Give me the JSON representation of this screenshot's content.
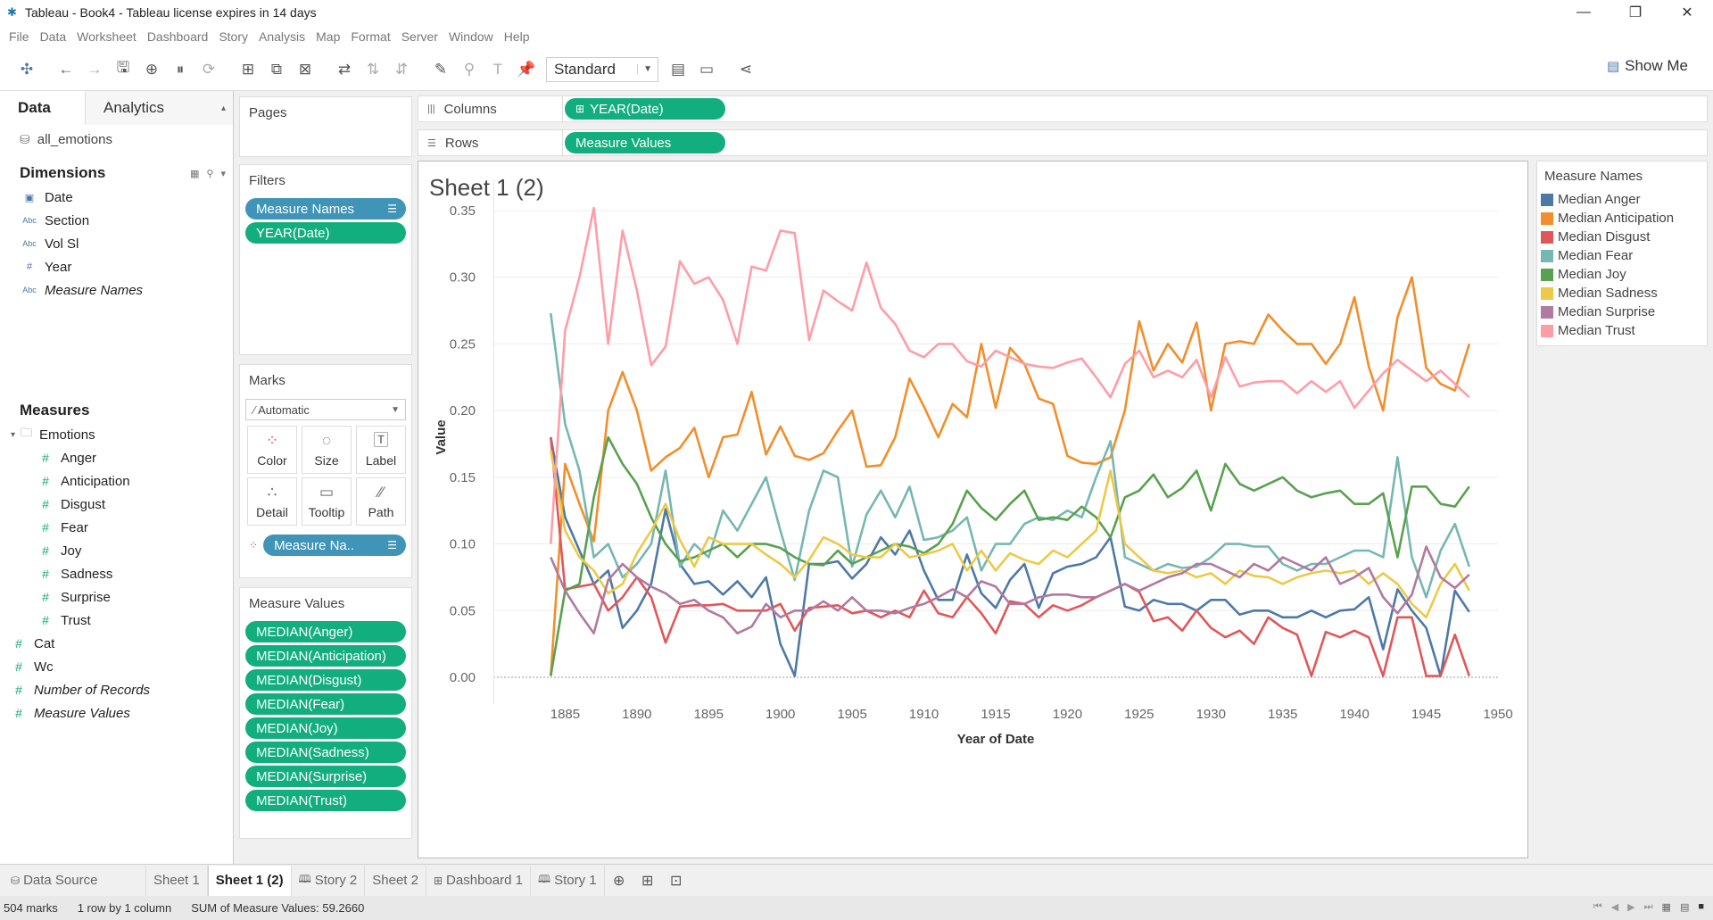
{
  "window": {
    "title": "Tableau - Book4 - Tableau license expires in 14 days",
    "minimize": "—",
    "restore": "❐",
    "close": "✕"
  },
  "menu": [
    "File",
    "Data",
    "Worksheet",
    "Dashboard",
    "Story",
    "Analysis",
    "Map",
    "Format",
    "Server",
    "Window",
    "Help"
  ],
  "toolbar": {
    "fit_value": "Standard",
    "show_me": "Show Me"
  },
  "data_pane": {
    "tab_data": "Data",
    "tab_analytics": "Analytics",
    "datasource": "all_emotions",
    "dimensions_title": "Dimensions",
    "dimensions": [
      {
        "type": "date",
        "name": "Date"
      },
      {
        "type": "abc",
        "name": "Section"
      },
      {
        "type": "abc",
        "name": "Vol Sl"
      },
      {
        "type": "num",
        "name": "Year"
      },
      {
        "type": "abc",
        "name": "Measure Names",
        "italic": true
      }
    ],
    "measures_title": "Measures",
    "folder": "Emotions",
    "folder_measures": [
      "Anger",
      "Anticipation",
      "Disgust",
      "Fear",
      "Joy",
      "Sadness",
      "Surprise",
      "Trust"
    ],
    "other_measures": [
      {
        "name": "Cat",
        "italic": false
      },
      {
        "name": "Wc",
        "italic": false
      },
      {
        "name": "Number of Records",
        "italic": true
      },
      {
        "name": "Measure Values",
        "italic": true
      }
    ]
  },
  "shelves": {
    "pages_title": "Pages",
    "filters_title": "Filters",
    "filters": [
      "Measure Names",
      "YEAR(Date)"
    ],
    "marks_title": "Marks",
    "marks_type": "Automatic",
    "marks_buttons": [
      "Color",
      "Size",
      "Label",
      "Detail",
      "Tooltip",
      "Path"
    ],
    "marks_pill": "Measure Na..",
    "measure_values_title": "Measure Values",
    "measure_values": [
      "MEDIAN(Anger)",
      "MEDIAN(Anticipation)",
      "MEDIAN(Disgust)",
      "MEDIAN(Fear)",
      "MEDIAN(Joy)",
      "MEDIAN(Sadness)",
      "MEDIAN(Surprise)",
      "MEDIAN(Trust)"
    ],
    "columns_label": "Columns",
    "columns_pill": "YEAR(Date)",
    "rows_label": "Rows",
    "rows_pill": "Measure Values"
  },
  "sheet": {
    "title": "Sheet 1 (2)"
  },
  "legend": {
    "title": "Measure Names"
  },
  "tabs": {
    "data_source": "Data Source",
    "sheets": [
      "Sheet 1",
      "Sheet 1 (2)",
      "Story 2",
      "Sheet 2",
      "Dashboard 1",
      "Story 1"
    ]
  },
  "status": {
    "marks": "504 marks",
    "rows_cols": "1 row by 1 column",
    "sum": "SUM of Measure Values: 59.2660"
  },
  "chart_data": {
    "type": "line",
    "xlabel": "Year of Date",
    "ylabel": "Value",
    "xlim": [
      1880,
      1950
    ],
    "ylim": [
      0,
      0.36
    ],
    "xticks": [
      1885,
      1890,
      1895,
      1900,
      1905,
      1910,
      1915,
      1920,
      1925,
      1930,
      1935,
      1940,
      1945,
      1950
    ],
    "yticks": [
      "0.00",
      "0.05",
      "0.10",
      "0.15",
      "0.20",
      "0.25",
      "0.30",
      "0.35"
    ],
    "x": [
      1884,
      1885,
      1886,
      1887,
      1888,
      1889,
      1890,
      1891,
      1892,
      1893,
      1894,
      1895,
      1896,
      1897,
      1898,
      1899,
      1900,
      1901,
      1902,
      1903,
      1904,
      1905,
      1906,
      1907,
      1908,
      1909,
      1910,
      1911,
      1912,
      1913,
      1914,
      1915,
      1916,
      1917,
      1918,
      1919,
      1920,
      1921,
      1922,
      1923,
      1924,
      1925,
      1926,
      1927,
      1928,
      1929,
      1930,
      1931,
      1932,
      1933,
      1934,
      1935,
      1936,
      1937,
      1938,
      1939,
      1940,
      1941,
      1942,
      1943,
      1944,
      1945,
      1946,
      1947,
      1948
    ],
    "series": [
      {
        "name": "Median Anger",
        "color": "#4e79a7",
        "values": [
          0.18,
          0.12,
          0.095,
          0.07,
          0.08,
          0.037,
          0.05,
          0.07,
          0.126,
          0.085,
          0.07,
          0.072,
          0.062,
          0.072,
          0.06,
          0.075,
          0.025,
          0.001,
          0.085,
          0.085,
          0.087,
          0.074,
          0.085,
          0.105,
          0.092,
          0.11,
          0.08,
          0.058,
          0.058,
          0.092,
          0.063,
          0.052,
          0.073,
          0.085,
          0.052,
          0.078,
          0.083,
          0.085,
          0.09,
          0.105,
          0.053,
          0.05,
          0.058,
          0.055,
          0.055,
          0.05,
          0.058,
          0.058,
          0.047,
          0.05,
          0.05,
          0.045,
          0.045,
          0.05,
          0.045,
          0.05,
          0.051,
          0.06,
          0.021,
          0.066,
          0.05,
          0.037,
          0.001,
          0.065,
          0.049
        ]
      },
      {
        "name": "Median Anticipation",
        "color": "#f28e2b",
        "values": [
          0.001,
          0.16,
          0.13,
          0.102,
          0.2,
          0.229,
          0.2,
          0.155,
          0.165,
          0.172,
          0.187,
          0.15,
          0.18,
          0.182,
          0.214,
          0.167,
          0.188,
          0.166,
          0.163,
          0.168,
          0.185,
          0.2,
          0.158,
          0.159,
          0.18,
          0.224,
          0.203,
          0.18,
          0.205,
          0.195,
          0.25,
          0.202,
          0.247,
          0.235,
          0.209,
          0.205,
          0.166,
          0.161,
          0.16,
          0.165,
          0.2,
          0.267,
          0.23,
          0.25,
          0.236,
          0.266,
          0.2,
          0.25,
          0.252,
          0.25,
          0.272,
          0.26,
          0.25,
          0.25,
          0.235,
          0.25,
          0.285,
          0.233,
          0.2,
          0.27,
          0.3,
          0.232,
          0.22,
          0.215,
          0.25
        ]
      },
      {
        "name": "Median Disgust",
        "color": "#e15759",
        "values": [
          0.18,
          0.066,
          0.068,
          0.07,
          0.05,
          0.06,
          0.075,
          0.06,
          0.026,
          0.053,
          0.054,
          0.054,
          0.055,
          0.05,
          0.05,
          0.05,
          0.055,
          0.035,
          0.052,
          0.053,
          0.054,
          0.048,
          0.05,
          0.045,
          0.05,
          0.045,
          0.065,
          0.048,
          0.045,
          0.06,
          0.048,
          0.033,
          0.057,
          0.055,
          0.045,
          0.054,
          0.05,
          0.054,
          0.06,
          0.065,
          0.07,
          0.064,
          0.042,
          0.045,
          0.035,
          0.05,
          0.037,
          0.03,
          0.035,
          0.025,
          0.045,
          0.037,
          0.032,
          0.001,
          0.034,
          0.03,
          0.035,
          0.03,
          0.001,
          0.045,
          0.045,
          0.001,
          0.001,
          0.032,
          0.001
        ]
      },
      {
        "name": "Median Fear",
        "color": "#76b7b2",
        "values": [
          0.273,
          0.19,
          0.155,
          0.09,
          0.1,
          0.075,
          0.085,
          0.1,
          0.155,
          0.083,
          0.1,
          0.09,
          0.125,
          0.11,
          0.13,
          0.15,
          0.11,
          0.073,
          0.125,
          0.155,
          0.15,
          0.083,
          0.122,
          0.14,
          0.12,
          0.143,
          0.103,
          0.105,
          0.11,
          0.12,
          0.08,
          0.1,
          0.1,
          0.115,
          0.12,
          0.118,
          0.125,
          0.12,
          0.15,
          0.177,
          0.09,
          0.085,
          0.08,
          0.085,
          0.082,
          0.083,
          0.09,
          0.1,
          0.1,
          0.098,
          0.098,
          0.085,
          0.08,
          0.085,
          0.085,
          0.09,
          0.095,
          0.095,
          0.09,
          0.165,
          0.09,
          0.06,
          0.095,
          0.115,
          0.083
        ]
      },
      {
        "name": "Median Joy",
        "color": "#59a14f",
        "values": [
          0.001,
          0.065,
          0.07,
          0.135,
          0.18,
          0.16,
          0.145,
          0.12,
          0.1,
          0.087,
          0.09,
          0.095,
          0.1,
          0.09,
          0.1,
          0.1,
          0.097,
          0.09,
          0.085,
          0.084,
          0.095,
          0.085,
          0.09,
          0.095,
          0.1,
          0.098,
          0.093,
          0.1,
          0.115,
          0.14,
          0.127,
          0.118,
          0.13,
          0.14,
          0.118,
          0.12,
          0.118,
          0.128,
          0.12,
          0.105,
          0.135,
          0.14,
          0.152,
          0.135,
          0.142,
          0.155,
          0.125,
          0.16,
          0.145,
          0.14,
          0.145,
          0.15,
          0.14,
          0.135,
          0.138,
          0.14,
          0.13,
          0.13,
          0.138,
          0.09,
          0.143,
          0.143,
          0.13,
          0.128,
          0.143
        ]
      },
      {
        "name": "Median Sadness",
        "color": "#edc948",
        "values": [
          0.17,
          0.11,
          0.09,
          0.08,
          0.063,
          0.07,
          0.093,
          0.11,
          0.13,
          0.103,
          0.083,
          0.105,
          0.1,
          0.1,
          0.1,
          0.092,
          0.085,
          0.075,
          0.088,
          0.105,
          0.1,
          0.092,
          0.09,
          0.09,
          0.1,
          0.09,
          0.092,
          0.095,
          0.1,
          0.08,
          0.095,
          0.08,
          0.093,
          0.088,
          0.085,
          0.095,
          0.09,
          0.1,
          0.11,
          0.155,
          0.1,
          0.09,
          0.08,
          0.078,
          0.08,
          0.075,
          0.078,
          0.07,
          0.08,
          0.076,
          0.075,
          0.07,
          0.075,
          0.078,
          0.08,
          0.078,
          0.08,
          0.07,
          0.078,
          0.07,
          0.055,
          0.045,
          0.07,
          0.085,
          0.065
        ]
      },
      {
        "name": "Median Surprise",
        "color": "#b07aa1",
        "values": [
          0.09,
          0.065,
          0.048,
          0.033,
          0.073,
          0.085,
          0.075,
          0.068,
          0.063,
          0.055,
          0.058,
          0.05,
          0.045,
          0.033,
          0.038,
          0.055,
          0.045,
          0.05,
          0.05,
          0.057,
          0.05,
          0.06,
          0.05,
          0.05,
          0.048,
          0.052,
          0.055,
          0.06,
          0.066,
          0.06,
          0.072,
          0.068,
          0.055,
          0.055,
          0.06,
          0.062,
          0.062,
          0.06,
          0.06,
          0.065,
          0.07,
          0.065,
          0.07,
          0.075,
          0.078,
          0.085,
          0.085,
          0.08,
          0.075,
          0.085,
          0.08,
          0.09,
          0.085,
          0.08,
          0.09,
          0.07,
          0.075,
          0.082,
          0.06,
          0.048,
          0.062,
          0.098,
          0.075,
          0.067,
          0.077
        ]
      },
      {
        "name": "Median Trust",
        "color": "#ff9da7",
        "values": [
          0.1,
          0.26,
          0.3,
          0.352,
          0.25,
          0.335,
          0.29,
          0.234,
          0.248,
          0.312,
          0.295,
          0.3,
          0.283,
          0.25,
          0.308,
          0.305,
          0.335,
          0.333,
          0.253,
          0.29,
          0.282,
          0.275,
          0.311,
          0.277,
          0.265,
          0.245,
          0.24,
          0.25,
          0.25,
          0.237,
          0.233,
          0.245,
          0.24,
          0.235,
          0.233,
          0.232,
          0.236,
          0.239,
          0.225,
          0.21,
          0.235,
          0.245,
          0.225,
          0.23,
          0.225,
          0.238,
          0.21,
          0.24,
          0.218,
          0.221,
          0.222,
          0.222,
          0.213,
          0.222,
          0.214,
          0.222,
          0.202,
          0.215,
          0.228,
          0.238,
          0.23,
          0.222,
          0.23,
          0.22,
          0.21
        ]
      }
    ]
  }
}
